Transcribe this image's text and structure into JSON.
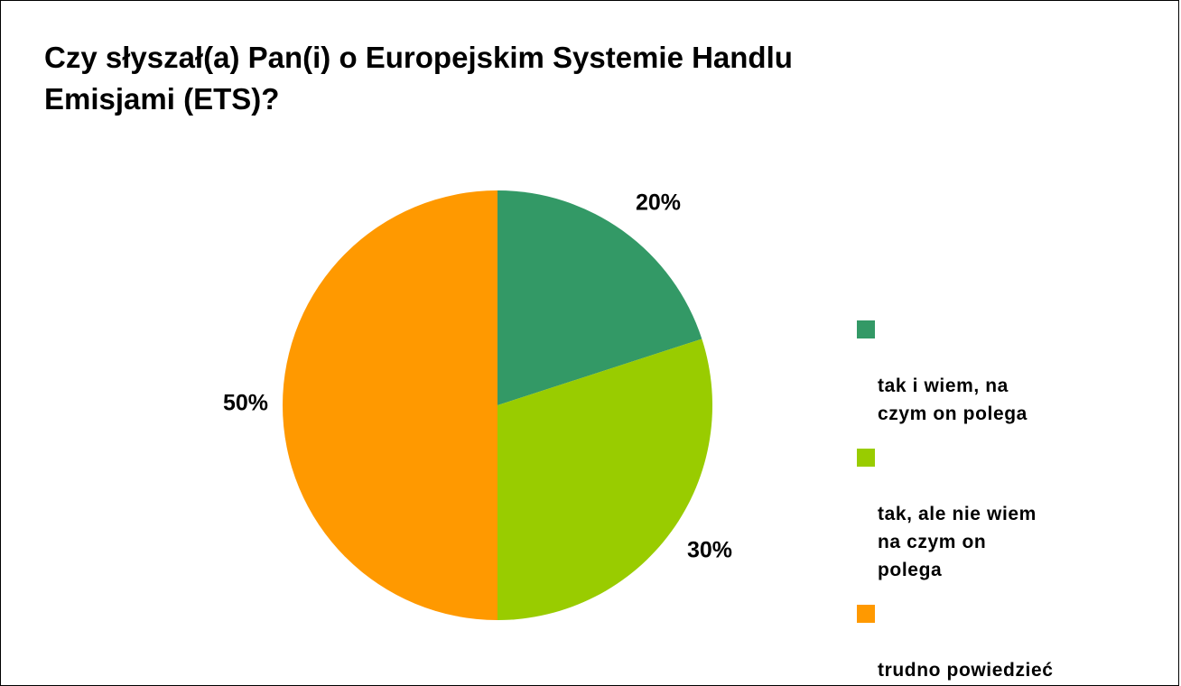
{
  "chart_data": {
    "type": "pie",
    "title": "Czy słyszał(a) Pan(i) o Europejskim Systemie Handlu Emisjami (ETS)?",
    "slices": [
      {
        "label": "tak i wiem, na czym on polega",
        "value": 20,
        "display": "20%",
        "color": "#339966"
      },
      {
        "label": "tak, ale nie wiem na czym on polega",
        "value": 30,
        "display": "30%",
        "color": "#99cc00"
      },
      {
        "label": "trudno powiedzieć",
        "value": 50,
        "display": "50%",
        "color": "#ff9900"
      }
    ],
    "start_angle_deg": 0,
    "direction": "clockwise",
    "legend_position": "right"
  }
}
